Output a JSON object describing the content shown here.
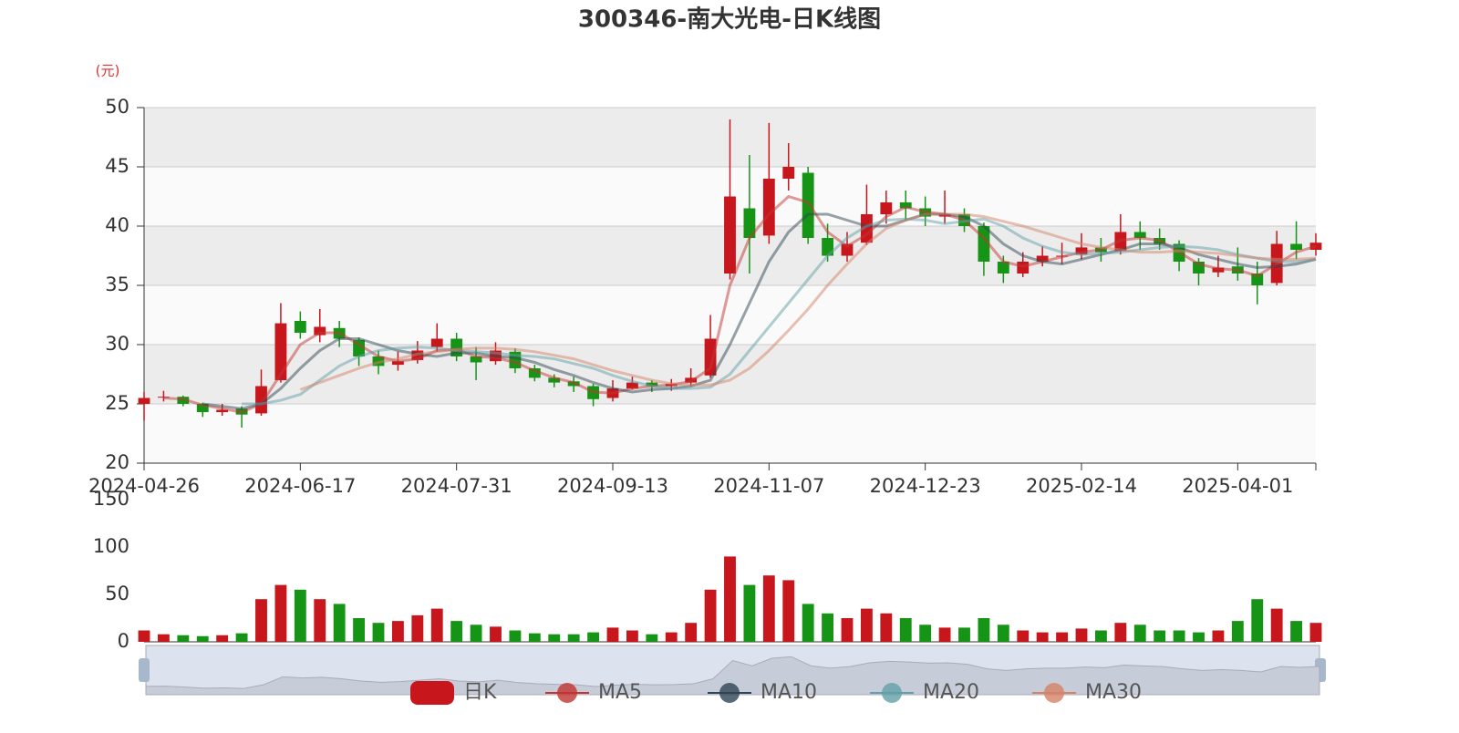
{
  "chart_data": {
    "type": "candlestick",
    "title": "300346-南大光电-日K线图",
    "y_axis_label": "(元)",
    "categories": [
      "2024-04-26",
      null,
      null,
      null,
      null,
      null,
      null,
      null,
      "2024-06-17",
      null,
      null,
      null,
      null,
      null,
      null,
      null,
      "2024-07-31",
      null,
      null,
      null,
      null,
      null,
      null,
      null,
      "2024-09-13",
      null,
      null,
      null,
      null,
      null,
      null,
      null,
      "2024-11-07",
      null,
      null,
      null,
      null,
      null,
      null,
      null,
      "2024-12-23",
      null,
      null,
      null,
      null,
      null,
      null,
      null,
      "2025-02-14",
      null,
      null,
      null,
      null,
      null,
      null,
      null,
      "2025-04-01",
      null,
      null,
      null,
      null
    ],
    "ylim": [
      20,
      50
    ],
    "yticks": [
      20,
      25,
      30,
      35,
      40,
      45,
      50
    ],
    "volume_ylim": [
      0,
      150
    ],
    "volume_yticks": [
      0,
      50,
      100,
      150
    ],
    "up_color": "#c8161d",
    "down_color": "#169416",
    "grid": true,
    "series": [
      {
        "name": "日K",
        "open": [
          25.0,
          25.6,
          25.6,
          25.0,
          24.3,
          24.6,
          24.2,
          27.0,
          32.0,
          30.8,
          31.4,
          30.4,
          29.0,
          28.3,
          28.7,
          29.8,
          30.5,
          29.0,
          28.6,
          29.4,
          28.0,
          27.2,
          26.9,
          26.5,
          25.5,
          26.3,
          26.8,
          26.5,
          26.8,
          27.4,
          36.0,
          41.5,
          39.2,
          44.0,
          44.5,
          39.0,
          37.5,
          38.6,
          41.0,
          42.0,
          41.5,
          40.8,
          41.0,
          40.0,
          37.0,
          36.0,
          37.0,
          37.5,
          37.6,
          38.2,
          37.9,
          39.5,
          39.0,
          38.5,
          37.0,
          36.1,
          36.6,
          36.0,
          35.2,
          38.5,
          38.0
        ],
        "close": [
          25.5,
          25.6,
          25.0,
          24.3,
          24.5,
          24.1,
          26.5,
          31.8,
          31.0,
          31.5,
          30.5,
          29.0,
          28.2,
          28.6,
          29.5,
          30.5,
          29.0,
          28.5,
          29.5,
          28.0,
          27.2,
          26.8,
          26.5,
          25.4,
          26.3,
          26.8,
          26.5,
          26.7,
          27.2,
          30.5,
          42.5,
          39.0,
          44.0,
          45.0,
          39.0,
          37.5,
          38.5,
          41.0,
          42.0,
          41.5,
          40.8,
          41.0,
          40.0,
          37.0,
          36.0,
          37.0,
          37.5,
          37.5,
          38.2,
          37.8,
          39.5,
          39.0,
          38.5,
          37.0,
          36.0,
          36.5,
          36.0,
          35.0,
          38.5,
          38.0,
          38.6
        ],
        "low": [
          23.6,
          25.2,
          24.8,
          23.9,
          24.0,
          23.0,
          24.0,
          26.8,
          30.5,
          30.2,
          29.8,
          28.2,
          27.5,
          27.8,
          28.4,
          29.4,
          28.6,
          27.0,
          28.3,
          27.6,
          26.9,
          26.4,
          26.0,
          24.8,
          25.2,
          26.2,
          26.0,
          26.1,
          26.5,
          27.2,
          35.5,
          36.0,
          38.5,
          43.0,
          38.5,
          37.0,
          37.0,
          38.4,
          40.2,
          40.5,
          40.0,
          40.2,
          39.5,
          35.8,
          35.2,
          35.7,
          36.6,
          36.8,
          37.2,
          37.0,
          37.6,
          38.0,
          38.0,
          36.2,
          35.0,
          35.7,
          35.4,
          33.4,
          35.0,
          37.2,
          37.5
        ],
        "high": [
          26.0,
          26.1,
          25.7,
          25.1,
          25.0,
          24.8,
          27.9,
          33.5,
          32.8,
          33.0,
          32.0,
          30.6,
          29.5,
          29.4,
          30.3,
          31.8,
          31.0,
          29.8,
          30.2,
          29.7,
          28.3,
          27.5,
          27.3,
          26.7,
          27.0,
          27.3,
          27.0,
          27.1,
          28.0,
          32.5,
          49.0,
          46.0,
          48.7,
          47.0,
          45.0,
          40.2,
          39.5,
          43.5,
          43.0,
          43.0,
          42.5,
          43.0,
          41.5,
          40.3,
          37.5,
          37.8,
          38.3,
          38.6,
          39.4,
          39.0,
          41.0,
          40.4,
          39.8,
          38.8,
          37.3,
          37.5,
          38.2,
          37.0,
          39.6,
          40.4,
          39.4
        ]
      },
      {
        "name": "MA5",
        "color": "#c23531",
        "values": [
          null,
          25.5,
          25.4,
          24.9,
          24.6,
          24.3,
          25.0,
          27.5,
          30.0,
          31.0,
          31.0,
          30.0,
          29.0,
          28.6,
          28.8,
          29.5,
          29.6,
          29.0,
          28.9,
          28.5,
          27.8,
          27.2,
          26.8,
          26.0,
          25.9,
          26.3,
          26.5,
          26.6,
          26.9,
          28.0,
          35.0,
          39.0,
          41.0,
          42.5,
          42.0,
          39.5,
          38.3,
          39.3,
          40.8,
          41.6,
          41.2,
          41.0,
          40.5,
          39.0,
          37.0,
          36.6,
          37.0,
          37.4,
          37.8,
          38.0,
          38.8,
          39.0,
          38.8,
          37.8,
          36.8,
          36.4,
          36.3,
          35.8,
          36.8,
          37.8,
          38.3
        ]
      },
      {
        "name": "MA10",
        "color": "#2f4554",
        "values": [
          null,
          null,
          null,
          25.0,
          24.8,
          24.6,
          25.0,
          26.3,
          28.0,
          29.5,
          30.5,
          30.5,
          30.0,
          29.5,
          29.2,
          29.0,
          29.3,
          29.3,
          29.0,
          28.9,
          28.5,
          27.9,
          27.4,
          26.8,
          26.3,
          26.0,
          26.2,
          26.3,
          26.5,
          27.0,
          30.0,
          33.5,
          37.0,
          39.5,
          41.0,
          41.0,
          40.5,
          40.0,
          40.0,
          40.5,
          41.0,
          41.0,
          40.8,
          40.0,
          38.5,
          37.5,
          37.0,
          36.8,
          37.2,
          37.6,
          38.0,
          38.5,
          38.5,
          38.2,
          37.6,
          37.2,
          36.8,
          36.5,
          36.6,
          36.8,
          37.2
        ]
      },
      {
        "name": "MA20",
        "color": "#61a0a8",
        "values": [
          null,
          null,
          null,
          null,
          null,
          25.0,
          25.0,
          25.3,
          25.8,
          27.0,
          28.2,
          29.0,
          29.5,
          29.7,
          29.8,
          29.7,
          29.5,
          29.4,
          29.3,
          29.1,
          29.0,
          28.8,
          28.4,
          28.0,
          27.4,
          26.9,
          26.5,
          26.3,
          26.3,
          26.4,
          27.5,
          29.5,
          31.5,
          33.5,
          35.5,
          37.5,
          39.0,
          40.0,
          40.5,
          40.6,
          40.5,
          40.2,
          40.4,
          40.6,
          40.0,
          39.0,
          38.3,
          37.8,
          37.6,
          37.7,
          37.8,
          38.0,
          38.2,
          38.3,
          38.2,
          38.0,
          37.6,
          37.3,
          37.0,
          37.0,
          37.2
        ]
      },
      {
        "name": "MA30",
        "color": "#d48265",
        "values": [
          null,
          null,
          null,
          null,
          null,
          null,
          null,
          null,
          26.2,
          26.8,
          27.4,
          28.0,
          28.5,
          28.8,
          29.2,
          29.4,
          29.6,
          29.7,
          29.7,
          29.6,
          29.4,
          29.1,
          28.8,
          28.3,
          27.8,
          27.4,
          27.0,
          26.7,
          26.6,
          26.6,
          27.0,
          28.0,
          29.5,
          31.2,
          33.0,
          35.0,
          36.8,
          38.5,
          39.8,
          40.5,
          41.0,
          41.0,
          41.0,
          40.8,
          40.4,
          40.0,
          39.5,
          39.0,
          38.5,
          38.2,
          38.0,
          37.8,
          37.8,
          37.9,
          37.8,
          37.7,
          37.5,
          37.3,
          37.2,
          37.2,
          37.3
        ]
      }
    ],
    "volume": [
      12,
      8,
      7,
      6,
      7,
      9,
      45,
      60,
      55,
      45,
      40,
      25,
      20,
      22,
      28,
      35,
      22,
      18,
      16,
      12,
      9,
      8,
      8,
      10,
      15,
      12,
      8,
      10,
      20,
      55,
      90,
      60,
      70,
      65,
      40,
      30,
      25,
      35,
      30,
      25,
      18,
      15,
      15,
      25,
      18,
      12,
      10,
      10,
      14,
      12,
      20,
      18,
      12,
      12,
      10,
      12,
      22,
      45,
      35,
      22,
      20
    ]
  }
}
